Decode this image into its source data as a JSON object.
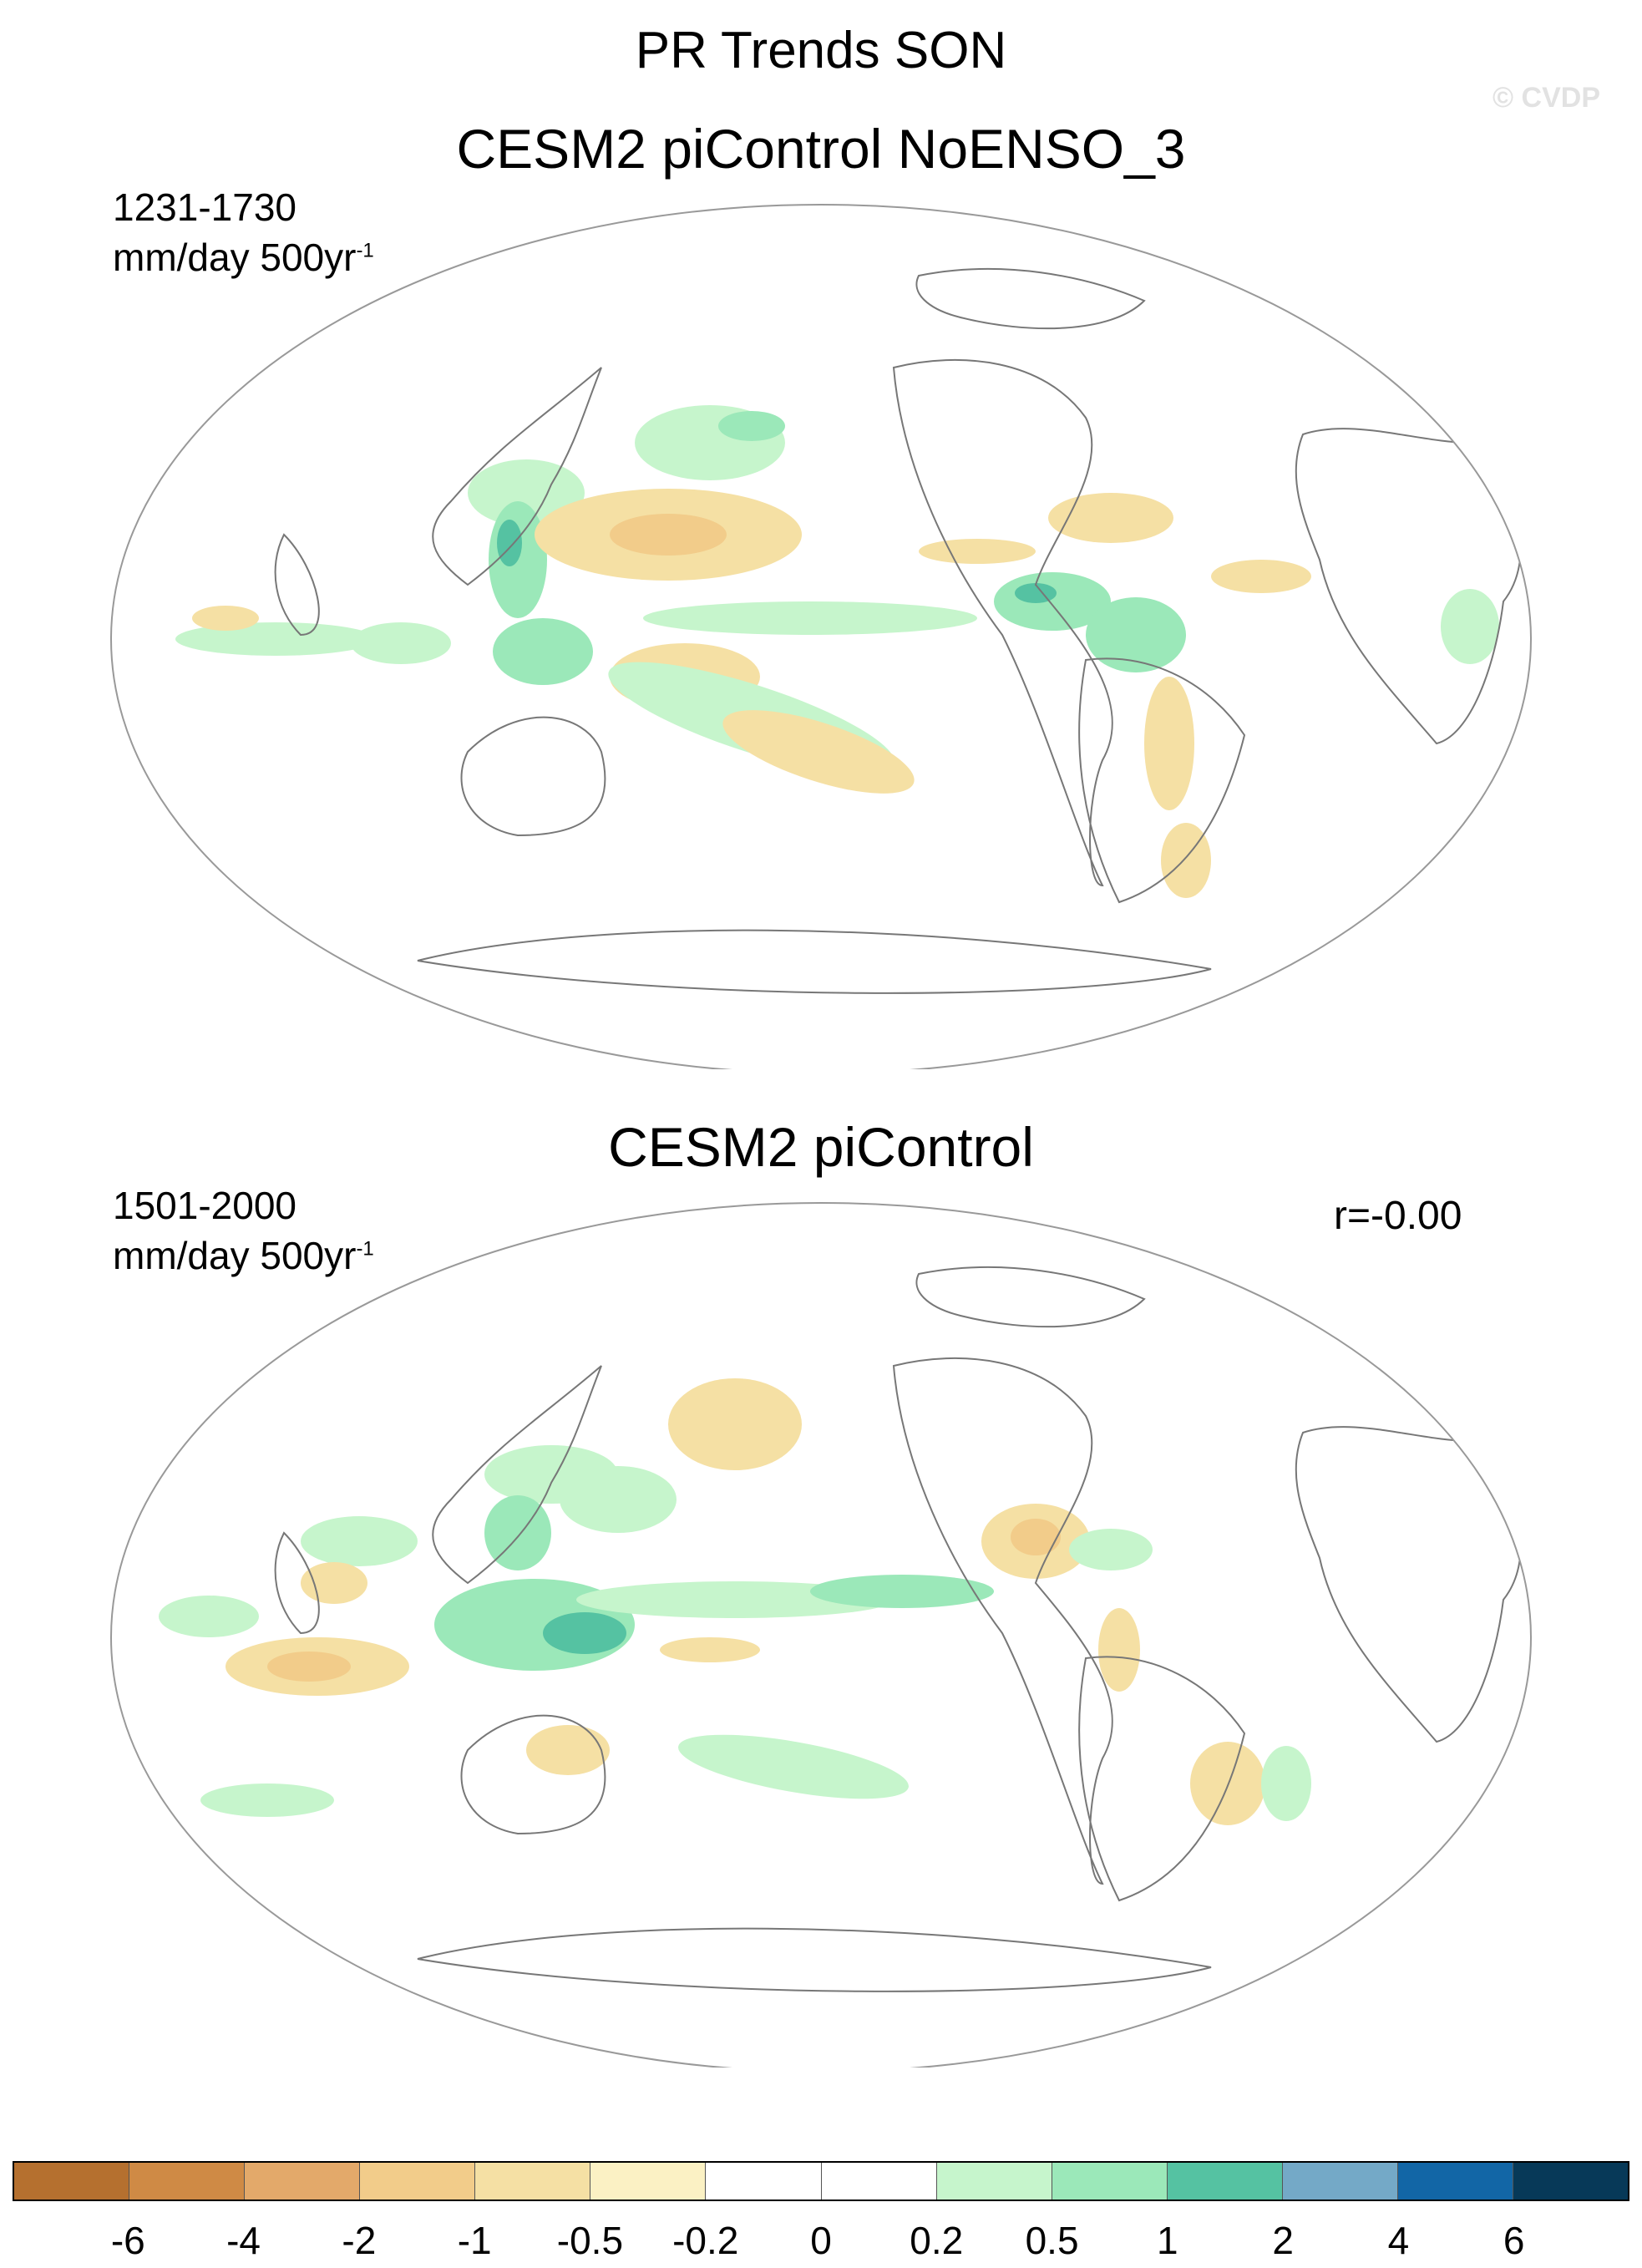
{
  "title": "PR Trends SON",
  "watermark": "© CVDP",
  "panels": [
    {
      "title": "CESM2 piControl NoENSO_3",
      "period": "1231-1730",
      "units_base": "mm/day 500yr",
      "units_exp": "-1",
      "correlation": ""
    },
    {
      "title": "CESM2 piControl",
      "period": "1501-2000",
      "units_base": "mm/day 500yr",
      "units_exp": "-1",
      "correlation": "r=-0.00"
    }
  ],
  "colorbar": {
    "colors": [
      "#b5702f",
      "#cf8a45",
      "#e3a96a",
      "#f2cc8a",
      "#f5e0a4",
      "#fbf1c4",
      "#ffffff",
      "#ffffff",
      "#c6f5cc",
      "#9be8b9",
      "#55c2a2",
      "#74a9c7",
      "#1266a6",
      "#073958"
    ],
    "labels": [
      "-6",
      "-4",
      "-2",
      "-1",
      "-0.5",
      "-0.2",
      "0",
      "0.2",
      "0.5",
      "1",
      "2",
      "4",
      "6"
    ]
  },
  "legend": {
    "color_scheme": "brown-to-blue diverging",
    "projection": "Robinson (Pacific-centered)"
  }
}
